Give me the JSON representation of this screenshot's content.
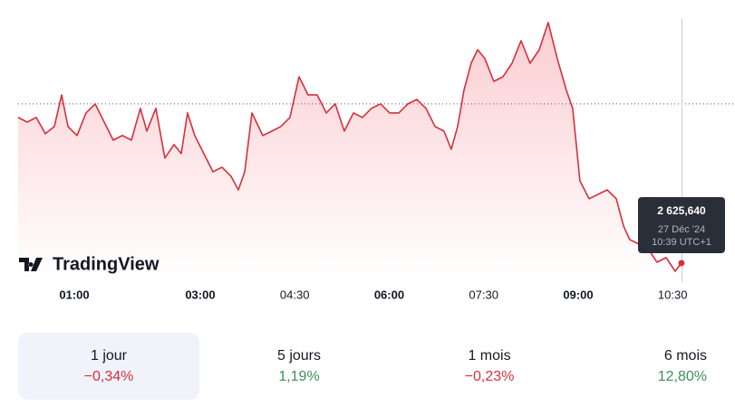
{
  "chart_data": {
    "type": "area",
    "x": [
      6.5,
      15.1,
      23.8,
      32.4,
      41.0,
      47.9,
      54.0,
      62.6,
      71.2,
      79.9,
      88.5,
      97.1,
      105.8,
      114.4,
      123.0,
      129.1,
      137.7,
      146.3,
      155.0,
      161.9,
      167.9,
      174.8,
      183.4,
      192.1,
      200.7,
      209.3,
      216.3,
      222.3,
      229.2,
      239.5,
      248.2,
      256.8,
      265.4,
      274.1,
      282.7,
      291.3,
      300.0,
      308.6,
      317.2,
      325.9,
      334.5,
      343.1,
      351.8,
      360.4,
      369.1,
      377.7,
      386.3,
      395.0,
      403.6,
      412.2,
      419.1,
      425.2,
      431.2,
      438.1,
      444.2,
      451.1,
      459.7,
      468.3,
      477.0,
      485.6,
      494.2,
      502.9,
      511.5,
      520.1,
      528.8,
      534.8,
      541.7,
      550.4,
      559.0,
      567.6,
      576.3,
      583.2,
      589.2,
      597.8,
      606.5,
      615.1,
      623.8,
      632.4,
      638.4
    ],
    "series": [
      {
        "color": "#d6303c",
        "values": [
          2633.84,
          2633.58,
          2633.84,
          2632.92,
          2633.33,
          2635.11,
          2633.33,
          2632.82,
          2634.09,
          2634.6,
          2633.58,
          2632.56,
          2632.82,
          2632.56,
          2634.35,
          2633.07,
          2634.35,
          2631.55,
          2632.31,
          2631.8,
          2634.09,
          2632.82,
          2631.8,
          2630.78,
          2631.04,
          2630.53,
          2629.76,
          2630.78,
          2634.09,
          2632.82,
          2633.07,
          2633.33,
          2633.84,
          2636.13,
          2635.11,
          2635.11,
          2634.09,
          2634.6,
          2633.07,
          2634.09,
          2633.84,
          2634.35,
          2634.6,
          2634.09,
          2634.09,
          2634.6,
          2634.85,
          2634.35,
          2633.33,
          2633.07,
          2632.05,
          2633.33,
          2635.36,
          2636.89,
          2637.65,
          2637.15,
          2635.87,
          2636.13,
          2636.89,
          2638.16,
          2636.89,
          2637.65,
          2639.18,
          2637.15,
          2635.36,
          2634.35,
          2630.27,
          2629.26,
          2629.51,
          2629.76,
          2629.26,
          2627.73,
          2626.96,
          2626.71,
          2626.46,
          2625.69,
          2625.95,
          2625.18,
          2625.64
        ]
      }
    ],
    "reference_line": 2634.6,
    "xlim": [
      6.5,
      689.4
    ],
    "ylim": [
      2624.67,
      2640.45
    ],
    "xticks": [
      {
        "value": 60,
        "label": "01:00"
      },
      {
        "value": 180,
        "label": "03:00"
      },
      {
        "value": 270,
        "label": "04:30"
      },
      {
        "value": 360,
        "label": "06:00"
      },
      {
        "value": 450,
        "label": "07:30"
      },
      {
        "value": 540,
        "label": "09:00"
      },
      {
        "value": 630,
        "label": "10:30"
      }
    ],
    "xticks_bold": [
      true,
      true,
      false,
      true,
      false,
      true,
      false
    ],
    "crosshair_x": 639,
    "tooltip": {
      "value": "2 625,640",
      "date": "27 Déc '24",
      "time": "10:39 UTC+1"
    },
    "brand": "TradingView"
  },
  "periods": [
    {
      "label": "1 jour",
      "change": "−0,34%",
      "selected": true
    },
    {
      "label": "5 jours",
      "change": "1,19%"
    },
    {
      "label": "1 mois",
      "change": "−0,23%"
    },
    {
      "label": "6 mois",
      "change": "12,80%"
    }
  ]
}
